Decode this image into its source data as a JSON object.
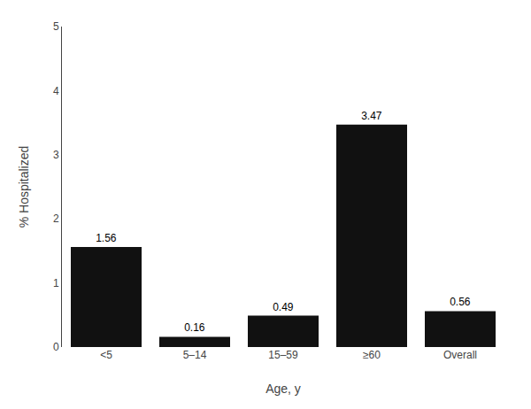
{
  "chart_data": {
    "type": "bar",
    "xlabel": "Age, y",
    "ylabel": "% Hospitalized",
    "categories": [
      "<5",
      "5–14",
      "15–59",
      "≥60",
      "Overall"
    ],
    "values": [
      1.56,
      0.16,
      0.49,
      3.47,
      0.56
    ],
    "color": "#111111",
    "ylim": [
      0,
      5
    ],
    "yticks": [
      0,
      1,
      2,
      3,
      4,
      5
    ],
    "grid": false,
    "data_labels": true
  }
}
